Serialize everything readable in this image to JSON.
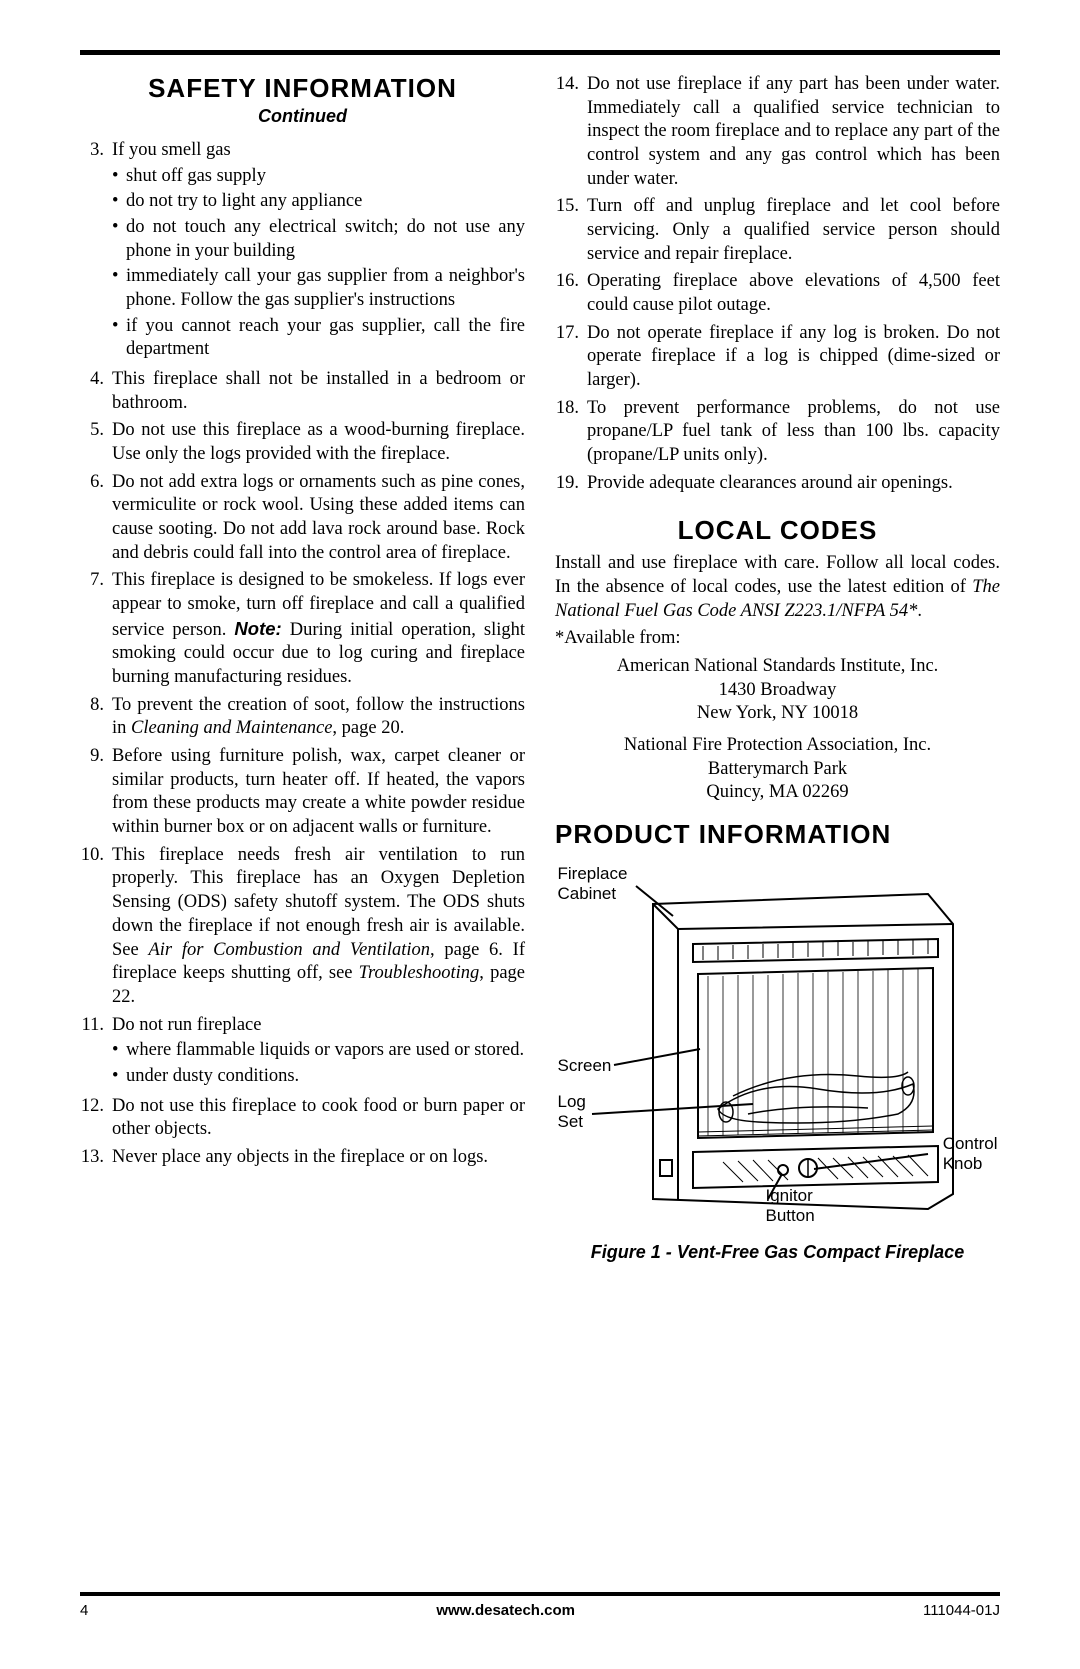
{
  "page": {
    "top_rule_color": "#000000",
    "bottom_rule_color": "#000000",
    "body_fontsize": 18.5,
    "heading_fontsize": 26,
    "subheading_fontsize": 18
  },
  "left": {
    "heading": "SAFETY INFORMATION",
    "subheading": "Continued",
    "items": [
      {
        "n": "3.",
        "text": "If you smell gas",
        "bullets": [
          "shut off gas supply",
          "do not try to light any appliance",
          "do not touch any electrical switch; do not use any phone in your building",
          "immediately call your gas supplier from a neighbor's phone. Follow the gas supplier's instructions",
          "if you cannot reach your gas supplier, call the fire department"
        ]
      },
      {
        "n": "4.",
        "text": "This fireplace shall not be installed in a bedroom or bathroom."
      },
      {
        "n": "5.",
        "text": "Do not use this fireplace as a wood-burning fireplace. Use only the logs provided with the fireplace."
      },
      {
        "n": "6.",
        "text": "Do not add extra logs or ornaments such as pine cones, vermiculite or rock wool. Using these added items can cause sooting. Do not add lava rock around base. Rock and debris could fall into the control area of fireplace."
      },
      {
        "n": "7.",
        "text_html": "This fireplace is designed to be smokeless. If logs ever appear to smoke, turn off fireplace and call a qualified service person. <span class=\"sans-bolditalic\">Note:</span> During initial operation, slight smoking could occur due to log curing and fireplace burning manufacturing residues."
      },
      {
        "n": "8.",
        "text_html": "To prevent the creation of soot, follow the instructions in <span class=\"italic\">Cleaning and Maintenance</span>, page 20."
      },
      {
        "n": "9.",
        "text": "Before using furniture polish, wax, carpet cleaner or similar products, turn heater off. If heated, the vapors from these products may create a white powder residue within burner box or on adjacent walls or furniture."
      },
      {
        "n": "10.",
        "text_html": "This fireplace needs fresh air ventilation to run properly. This fireplace has an Oxygen Depletion Sensing (ODS) safety shutoff system. The ODS shuts down the fireplace if not enough fresh air is available. See <span class=\"italic\">Air for Combustion and Ventilation</span>, page 6. If fireplace keeps shutting off, see <span class=\"italic\">Troubleshooting</span>, page 22."
      },
      {
        "n": "11.",
        "text": "Do not run fireplace",
        "bullets": [
          "where flammable liquids or vapors are used or stored.",
          "under dusty conditions."
        ]
      },
      {
        "n": "12.",
        "text": "Do not use this fireplace to cook food or burn paper or other objects."
      },
      {
        "n": "13.",
        "text": "Never place any objects in the fireplace or on logs."
      }
    ]
  },
  "right": {
    "items": [
      {
        "n": "14.",
        "text": "Do not use fireplace if any part has been under water. Immediately call a qualified service technician to inspect the room fireplace and to replace any part of the control system and any gas control which has been under water."
      },
      {
        "n": "15.",
        "text": "Turn off and unplug fireplace and let cool before servicing. Only a qualified service person should service and repair fireplace."
      },
      {
        "n": "16.",
        "text": "Operating fireplace above elevations of 4,500 feet could cause pilot outage."
      },
      {
        "n": "17.",
        "text": "Do not operate fireplace if any log is broken. Do not operate fireplace if a log is chipped (dime-sized or larger)."
      },
      {
        "n": "18.",
        "text": "To prevent performance problems, do not use propane/LP fuel tank of less than 100 lbs. capacity (propane/LP units only)."
      },
      {
        "n": "19.",
        "text": "Provide adequate clearances around air openings."
      }
    ],
    "local_codes_heading": "LOCAL CODES",
    "local_codes_para_html": "Install and use fireplace with care. Follow all local codes. In the absence of local codes, use the latest edition of <span class=\"italic\">The National Fuel Gas Code ANSI Z223.1/NFPA 54*</span>.",
    "available_from": "*Available from:",
    "addr1": [
      "American National Standards Institute, Inc.",
      "1430 Broadway",
      "New York, NY 10018"
    ],
    "addr2": [
      "National Fire Protection Association, Inc.",
      "Batterymarch Park",
      "Quincy, MA 02269"
    ],
    "product_info_heading": "PRODUCT INFORMATION",
    "diagram": {
      "labels": {
        "cabinet": "Fireplace\nCabinet",
        "screen": "Screen",
        "logset": "Log\nSet",
        "control": "Control\nKnob",
        "ignitor": "Ignitor\nButton"
      },
      "stroke": "#000000",
      "stroke_width": 2
    },
    "figure_caption": "Figure 1 - Vent-Free Gas Compact Fireplace"
  },
  "footer": {
    "page_number": "4",
    "url": "www.desatech.com",
    "doc_number": "111044-01J"
  }
}
